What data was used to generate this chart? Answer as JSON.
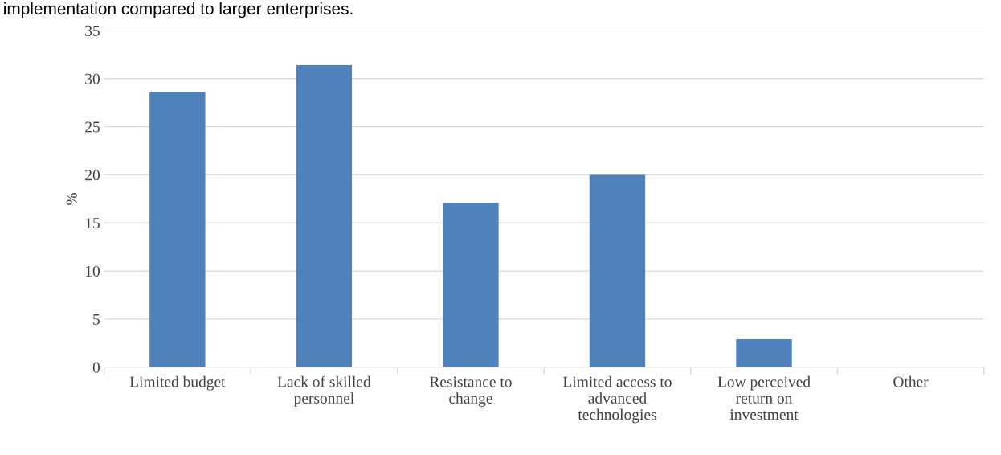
{
  "chart_data": {
    "type": "bar",
    "title": "implementation compared to larger enterprises.",
    "ylabel": "%",
    "categories": [
      "Limited budget",
      "Lack of skilled\npersonnel",
      "Resistance to\nchange",
      "Limited access to\nadvanced\ntechnologies",
      "Low perceived\nreturn on\ninvestment",
      "Other"
    ],
    "values": [
      28.6,
      31.4,
      17.1,
      20.0,
      2.9,
      0
    ],
    "color": "#4f81bd",
    "ylim": [
      0,
      35
    ],
    "yticks": [
      0,
      5,
      10,
      15,
      20,
      25,
      30,
      35
    ],
    "grid": "y",
    "legend": false
  }
}
